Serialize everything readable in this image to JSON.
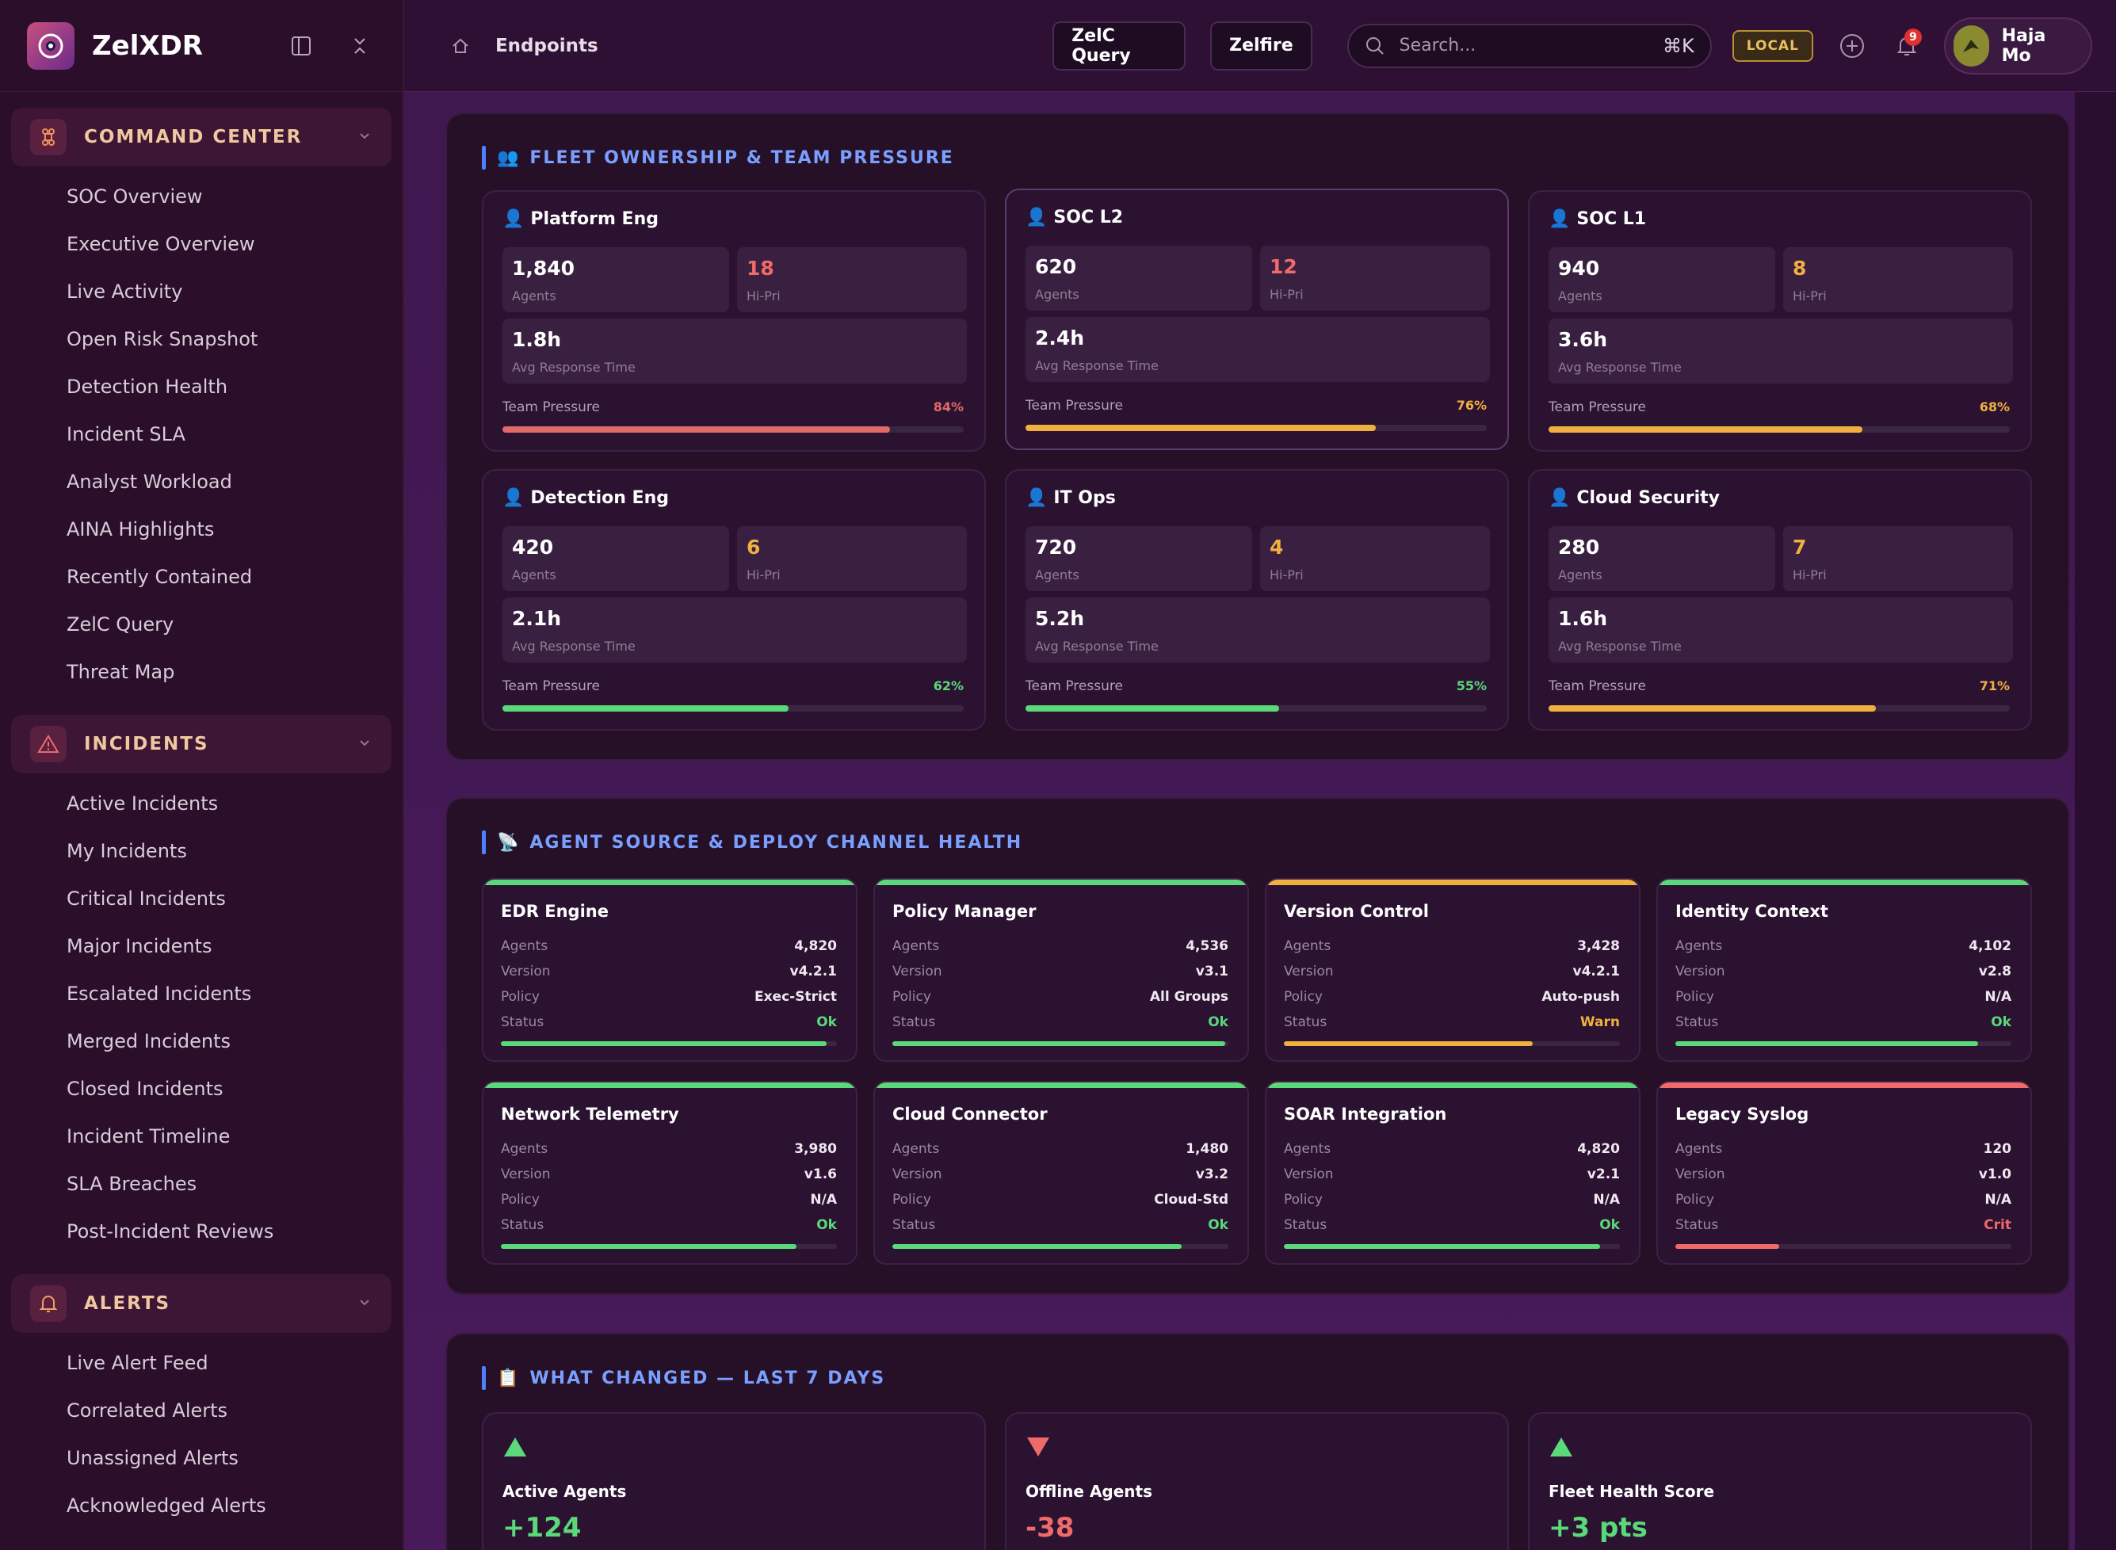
{
  "app": {
    "name": "ZelXDR"
  },
  "sidebar": {
    "groups": [
      {
        "label": "COMMAND CENTER",
        "icon": "command-icon",
        "items": [
          "SOC Overview",
          "Executive Overview",
          "Live Activity",
          "Open Risk Snapshot",
          "Detection Health",
          "Incident SLA",
          "Analyst Workload",
          "AINA Highlights",
          "Recently Contained",
          "ZelC Query",
          "Threat Map"
        ]
      },
      {
        "label": "INCIDENTS",
        "icon": "warning-icon",
        "items": [
          "Active Incidents",
          "My Incidents",
          "Critical Incidents",
          "Major Incidents",
          "Escalated Incidents",
          "Merged Incidents",
          "Closed Incidents",
          "Incident Timeline",
          "SLA Breaches",
          "Post-Incident Reviews"
        ]
      },
      {
        "label": "ALERTS",
        "icon": "bell-icon",
        "items": [
          "Live Alert Feed",
          "Correlated Alerts",
          "Unassigned Alerts",
          "Acknowledged Alerts"
        ]
      }
    ]
  },
  "topbar": {
    "breadcrumb": "Endpoints",
    "buttons": [
      "ZelC Query",
      "Zelfire"
    ],
    "search_placeholder": "Search...",
    "search_shortcut": "⌘K",
    "env_badge": "LOCAL",
    "notification_count": "9",
    "user_name": "Haja Mo"
  },
  "fleet": {
    "title": "FLEET OWNERSHIP & TEAM PRESSURE",
    "title_emoji": "👥",
    "agents_label": "Agents",
    "hipri_label": "Hi-Pri",
    "response_label": "Avg Response Time",
    "pressure_label": "Team Pressure",
    "teams": [
      {
        "name": "Platform Eng",
        "agents": "1,840",
        "hipri": "18",
        "hipri_color": "#f06a6a",
        "response": "1.8h",
        "pressure_text": "84%",
        "pressure": 0.84,
        "color": "#e06a6a"
      },
      {
        "name": "SOC L2",
        "agents": "620",
        "hipri": "12",
        "hipri_color": "#f06a6a",
        "response": "2.4h",
        "pressure_text": "76%",
        "pressure": 0.76,
        "color": "#f0b040"
      },
      {
        "name": "SOC L1",
        "agents": "940",
        "hipri": "8",
        "hipri_color": "#f0b040",
        "response": "3.6h",
        "pressure_text": "68%",
        "pressure": 0.68,
        "color": "#f0b040"
      },
      {
        "name": "Detection Eng",
        "agents": "420",
        "hipri": "6",
        "hipri_color": "#f0b040",
        "response": "2.1h",
        "pressure_text": "62%",
        "pressure": 0.62,
        "color": "#5ad87a"
      },
      {
        "name": "IT Ops",
        "agents": "720",
        "hipri": "4",
        "hipri_color": "#f0b040",
        "response": "5.2h",
        "pressure_text": "55%",
        "pressure": 0.55,
        "color": "#5ad87a"
      },
      {
        "name": "Cloud Security",
        "agents": "280",
        "hipri": "7",
        "hipri_color": "#f0b040",
        "response": "1.6h",
        "pressure_text": "71%",
        "pressure": 0.71,
        "color": "#f0b040"
      }
    ]
  },
  "channels": {
    "title": "AGENT SOURCE & DEPLOY CHANNEL HEALTH",
    "title_emoji": "📡",
    "row_labels": {
      "agents": "Agents",
      "version": "Version",
      "policy": "Policy",
      "status": "Status"
    },
    "items": [
      {
        "name": "EDR Engine",
        "agents": "4,820",
        "version": "v4.2.1",
        "policy": "Exec-Strict",
        "status": "Ok",
        "health": 0.97,
        "color": "#5ad87a"
      },
      {
        "name": "Policy Manager",
        "agents": "4,536",
        "version": "v3.1",
        "policy": "All Groups",
        "status": "Ok",
        "health": 0.99,
        "color": "#5ad87a"
      },
      {
        "name": "Version Control",
        "agents": "3,428",
        "version": "v4.2.1",
        "policy": "Auto-push",
        "status": "Warn",
        "health": 0.74,
        "color": "#f0b040"
      },
      {
        "name": "Identity Context",
        "agents": "4,102",
        "version": "v2.8",
        "policy": "N/A",
        "status": "Ok",
        "health": 0.9,
        "color": "#5ad87a"
      },
      {
        "name": "Network Telemetry",
        "agents": "3,980",
        "version": "v1.6",
        "policy": "N/A",
        "status": "Ok",
        "health": 0.88,
        "color": "#5ad87a"
      },
      {
        "name": "Cloud Connector",
        "agents": "1,480",
        "version": "v3.2",
        "policy": "Cloud-Std",
        "status": "Ok",
        "health": 0.86,
        "color": "#5ad87a"
      },
      {
        "name": "SOAR Integration",
        "agents": "4,820",
        "version": "v2.1",
        "policy": "N/A",
        "status": "Ok",
        "health": 0.94,
        "color": "#5ad87a"
      },
      {
        "name": "Legacy Syslog",
        "agents": "120",
        "version": "v1.0",
        "policy": "N/A",
        "status": "Crit",
        "health": 0.31,
        "color": "#f06a6a"
      }
    ]
  },
  "changes": {
    "title": "WHAT CHANGED — LAST 7 DAYS",
    "title_emoji": "📋",
    "items": [
      {
        "label": "Active Agents",
        "value": "+124",
        "direction": "up",
        "color": "#5ad87a"
      },
      {
        "label": "Offline Agents",
        "value": "-38",
        "direction": "down",
        "color": "#f06a6a"
      },
      {
        "label": "Fleet Health Score",
        "value": "+3 pts",
        "direction": "up",
        "color": "#5ad87a"
      }
    ]
  }
}
